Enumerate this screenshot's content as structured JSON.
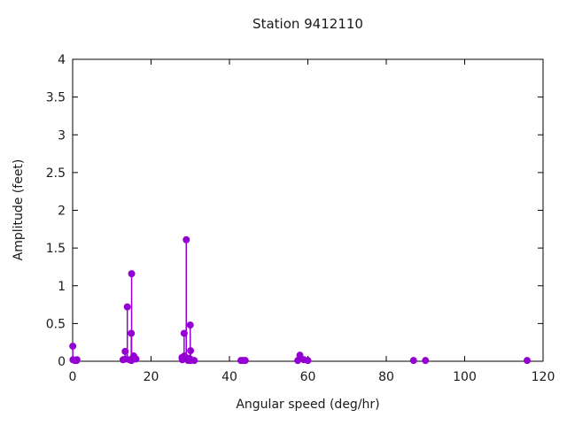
{
  "chart_data": {
    "type": "scatter",
    "style": "stem",
    "title": "Station 9412110",
    "xlabel": "Angular speed (deg/hr)",
    "ylabel": "Amplitude (feet)",
    "xlim": [
      0,
      120
    ],
    "ylim": [
      0,
      4
    ],
    "xticks": [
      0,
      20,
      40,
      60,
      80,
      100,
      120
    ],
    "yticks": [
      0,
      0.5,
      1,
      1.5,
      2,
      2.5,
      3,
      3.5,
      4
    ],
    "grid": false,
    "legend": false,
    "marker_color": "#9400d3",
    "axis_color": "#000000",
    "text_color": "#1a1a1a",
    "x": [
      0.0411,
      0.0821,
      0.5444,
      1.0159,
      1.098,
      12.8543,
      13.3987,
      13.4715,
      13.943,
      14.4967,
      14.9589,
      15.0,
      15.0411,
      15.5854,
      16.1391,
      27.8954,
      27.9682,
      28.4397,
      28.5126,
      28.9841,
      29.4556,
      29.5285,
      29.9589,
      30.0,
      30.0411,
      30.0821,
      31.0159,
      42.9271,
      43.4762,
      44.0252,
      57.4238,
      57.9682,
      58.9841,
      60.0,
      86.9523,
      90.0,
      115.9364
    ],
    "y": [
      0.2,
      0.02,
      0.01,
      0.01,
      0.02,
      0.02,
      0.13,
      0.03,
      0.72,
      0.02,
      0.37,
      0.01,
      1.16,
      0.07,
      0.03,
      0.05,
      0.02,
      0.37,
      0.07,
      1.61,
      0.01,
      0.04,
      0.03,
      0.48,
      0.01,
      0.14,
      0.01,
      0.01,
      0.01,
      0.01,
      0.01,
      0.08,
      0.02,
      0.01,
      0.01,
      0.01,
      0.01
    ]
  }
}
